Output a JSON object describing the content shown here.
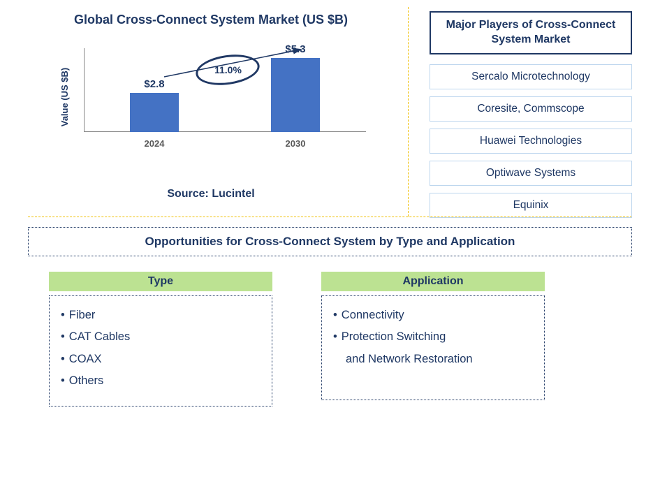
{
  "chart": {
    "title": "Global Cross-Connect System Market (US $B)",
    "ylabel": "Value (US $B)",
    "type": "bar",
    "categories": [
      "2024",
      "2030"
    ],
    "values": [
      2.8,
      5.3
    ],
    "value_labels": [
      "$2.8",
      "$5.3"
    ],
    "bar_color": "#4472c4",
    "ymax": 6.0,
    "growth_label": "11.0%",
    "background_color": "#ffffff",
    "axis_color": "#888888",
    "text_color": "#1f3864",
    "ellipse_border": "#203864"
  },
  "source": "Source: Lucintel",
  "players": {
    "header": "Major Players of Cross-Connect System Market",
    "list": [
      "Sercalo Microtechnology",
      "Coresite, Commscope",
      "Huawei Technologies",
      "Optiwave Systems",
      "Equinix"
    ]
  },
  "opportunities": {
    "title": "Opportunities for Cross-Connect System by Type and Application",
    "type": {
      "header": "Type",
      "items": [
        "Fiber",
        "CAT Cables",
        "COAX",
        "Others"
      ]
    },
    "application": {
      "header": "Application",
      "items_multiline": [
        [
          "Connectivity"
        ],
        [
          "Protection Switching",
          "and Network Restoration"
        ]
      ]
    },
    "header_bg": "#bce292"
  }
}
